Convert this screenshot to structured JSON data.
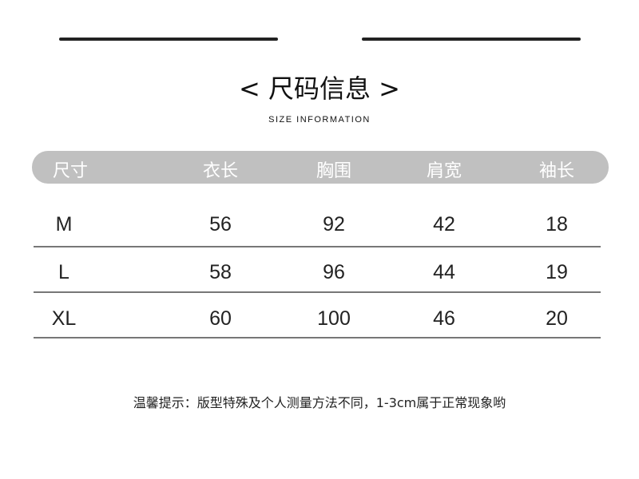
{
  "title": "< 尺码信息 >",
  "subtitle": "SIZE INFORMATION",
  "table": {
    "headers": [
      "尺寸",
      "衣长",
      "胸围",
      "肩宽",
      "袖长"
    ],
    "rows": [
      [
        "M",
        "56",
        "92",
        "42",
        "18"
      ],
      [
        "L",
        "58",
        "96",
        "44",
        "19"
      ],
      [
        "XL",
        "60",
        "100",
        "46",
        "20"
      ]
    ]
  },
  "note": "温馨提示：版型特殊及个人测量方法不同，1-3cm属于正常现象哟",
  "colors": {
    "header_bg": "#c0c0c0",
    "header_text": "#ffffff",
    "text": "#222222"
  }
}
